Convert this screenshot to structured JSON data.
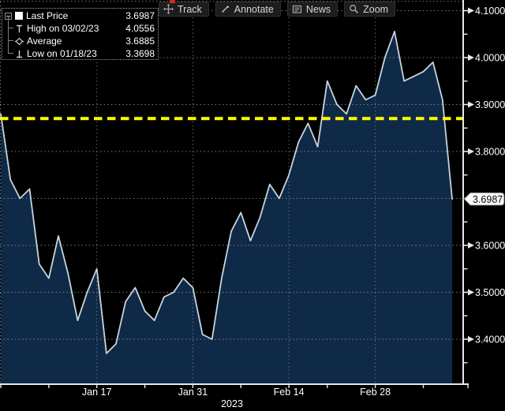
{
  "toolbar": {
    "items": [
      {
        "label": "Track",
        "icon": "track-crosshair-icon"
      },
      {
        "label": "Annotate",
        "icon": "pencil-icon"
      },
      {
        "label": "News",
        "icon": "newspaper-icon"
      },
      {
        "label": "Zoom",
        "icon": "magnifier-icon"
      }
    ]
  },
  "legend": {
    "items": [
      {
        "icon": "last-price-square-marker",
        "label": "Last Price",
        "value": "3.6987"
      },
      {
        "icon": "high-marker",
        "label": "High on 03/02/23",
        "value": "4.0556"
      },
      {
        "icon": "average-marker",
        "label": "Average",
        "value": "3.6885"
      },
      {
        "icon": "low-marker",
        "label": "Low on 01/18/23",
        "value": "3.3698"
      }
    ]
  },
  "chart_data": {
    "type": "area",
    "series_name": "Last Price",
    "title": "",
    "x": [
      "Dec 30",
      "Jan 3",
      "Jan 4",
      "Jan 5",
      "Jan 6",
      "Jan 9",
      "Jan 10",
      "Jan 11",
      "Jan 12",
      "Jan 13",
      "Jan 17",
      "Jan 18",
      "Jan 19",
      "Jan 20",
      "Jan 23",
      "Jan 24",
      "Jan 25",
      "Jan 26",
      "Jan 27",
      "Jan 30",
      "Jan 31",
      "Feb 1",
      "Feb 2",
      "Feb 3",
      "Feb 6",
      "Feb 7",
      "Feb 8",
      "Feb 9",
      "Feb 10",
      "Feb 13",
      "Feb 14",
      "Feb 15",
      "Feb 16",
      "Feb 17",
      "Feb 21",
      "Feb 22",
      "Feb 23",
      "Feb 24",
      "Feb 27",
      "Feb 28",
      "Mar 1",
      "Mar 2",
      "Mar 3",
      "Mar 6",
      "Mar 7",
      "Mar 8",
      "Mar 9",
      "Mar 10"
    ],
    "values": [
      3.88,
      3.74,
      3.7,
      3.72,
      3.56,
      3.53,
      3.62,
      3.54,
      3.44,
      3.5,
      3.55,
      3.3698,
      3.39,
      3.48,
      3.51,
      3.46,
      3.44,
      3.49,
      3.5,
      3.53,
      3.51,
      3.41,
      3.4,
      3.53,
      3.63,
      3.67,
      3.61,
      3.66,
      3.73,
      3.7,
      3.75,
      3.82,
      3.86,
      3.81,
      3.95,
      3.9,
      3.88,
      3.94,
      3.91,
      3.92,
      4.0,
      4.0556,
      3.95,
      3.96,
      3.97,
      3.99,
      3.91,
      3.6987
    ],
    "ylim": [
      3.3,
      4.12
    ],
    "grid": true,
    "legend_position": "top-left",
    "y_ticks": [
      {
        "value": 4.1,
        "label": "4.1000"
      },
      {
        "value": 4.0,
        "label": "4.0000"
      },
      {
        "value": 3.9,
        "label": "3.9000"
      },
      {
        "value": 3.8,
        "label": "3.8000"
      },
      {
        "value": 3.7,
        "label": ""
      },
      {
        "value": 3.6,
        "label": "3.6000"
      },
      {
        "value": 3.5,
        "label": "3.5000"
      },
      {
        "value": 3.4,
        "label": "3.4000"
      }
    ],
    "x_label_indices": [
      10,
      20,
      30,
      39
    ],
    "x_axis_labels": [
      "Jan 17",
      "Jan 31",
      "Feb 14",
      "Feb 28"
    ],
    "x_tick_indices": [
      0,
      5,
      10,
      15,
      20,
      25,
      30,
      34,
      39,
      44
    ],
    "year_label": "2023",
    "reference_line": {
      "value": 3.87,
      "style": "dashed",
      "color": "#ffff00"
    },
    "last_price_tag": {
      "value": 3.6987,
      "label": "3.6987"
    },
    "stats": {
      "last": 3.6987,
      "high": 4.0556,
      "high_date": "03/02/23",
      "average": 3.6885,
      "low": 3.3698,
      "low_date": "01/18/23"
    },
    "colors": {
      "background": "#000000",
      "area_fill": "#0f2a47",
      "line": "#c8d4de",
      "grid": "#9aa4ad",
      "axis": "#e8e8e8",
      "reference": "#ffff00",
      "tag_bg": "#ffffff",
      "tag_text": "#000000"
    }
  }
}
